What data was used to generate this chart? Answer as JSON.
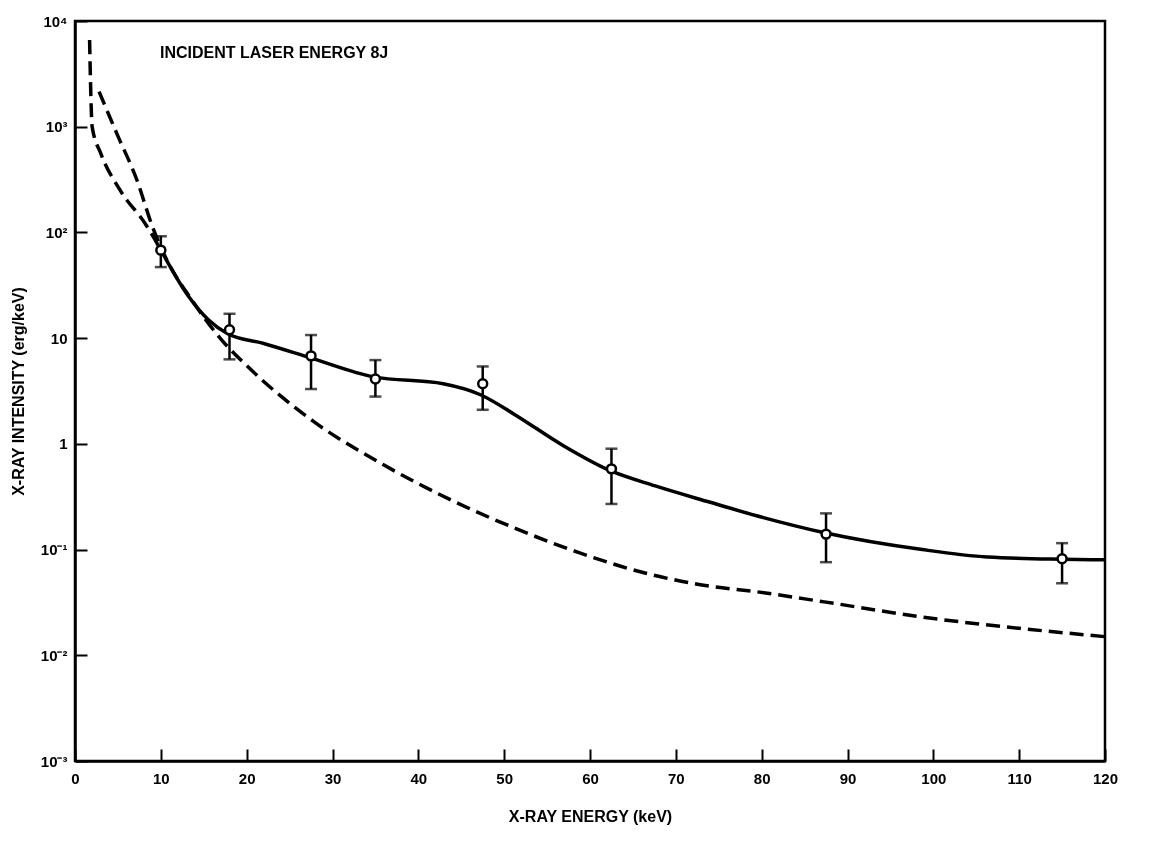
{
  "chart_data": {
    "type": "line",
    "xlabel": "X-RAY ENERGY (keV)",
    "ylabel": "X-RAY INTENSITY (erg/keV)",
    "annotations": [
      "INCIDENT LASER ENERGY 8J"
    ],
    "log": "y",
    "grid": false,
    "xlim": [
      0,
      120
    ],
    "xticks": [
      0,
      10,
      20,
      30,
      40,
      50,
      60,
      70,
      80,
      90,
      100,
      110,
      120
    ],
    "ylim": [
      0.001,
      10000
    ],
    "yticks": [
      {
        "value": 0.001,
        "label": "10⁻³"
      },
      {
        "value": 0.01,
        "label": "10⁻²"
      },
      {
        "value": 0.1,
        "label": "10⁻¹"
      },
      1,
      10,
      {
        "value": 100,
        "label": "10²"
      },
      {
        "value": 1000,
        "label": "10³"
      },
      {
        "value": 10000,
        "label": "10⁴"
      }
    ],
    "series": [
      {
        "line_style": "dashed",
        "color": "#000000",
        "x": [
          1.7,
          2.0,
          3.0,
          5.2,
          8.3,
          10.1
        ],
        "values": [
          6600,
          1000,
          560,
          255,
          117,
          66
        ]
      },
      {
        "line_style": "solid",
        "color": "#000000",
        "x": [
          10.1,
          13.2,
          15.5,
          17.8,
          22,
          27.7,
          34.8,
          42.9,
          47.3,
          51.2,
          56.9,
          62.3,
          67.6,
          74,
          79.3,
          87.2,
          98.7,
          106.3,
          115,
          120
        ],
        "values": [
          66,
          25,
          15,
          11,
          8.9,
          6.4,
          4.3,
          3.7,
          2.9,
          1.9,
          0.96,
          0.56,
          0.4,
          0.28,
          0.21,
          0.145,
          0.1,
          0.085,
          0.081,
          0.08
        ]
      },
      {
        "line_style": "dashed",
        "color": "#000000",
        "x": [
          2.8,
          4.9,
          7.2,
          9.0,
          10.6,
          13.6,
          17,
          20,
          27.7,
          36,
          43.6,
          51.2,
          58.8,
          66.4,
          74,
          79.3,
          87.3,
          98.7,
          110,
          120
        ],
        "values": [
          2150,
          850,
          315,
          115,
          57,
          23,
          9.8,
          5.5,
          1.65,
          0.63,
          0.3,
          0.16,
          0.093,
          0.06,
          0.045,
          0.04,
          0.032,
          0.023,
          0.018,
          0.015
        ]
      },
      {
        "type": "scatter",
        "marker": "circle",
        "color": "#000000",
        "x": [
          10,
          18,
          27.5,
          35,
          47.5,
          62.5,
          87.5,
          115
        ],
        "values": [
          68,
          12,
          6.8,
          4.1,
          3.7,
          0.58,
          0.14,
          0.082
        ],
        "errors": [
          [
            47,
            92
          ],
          [
            6.3,
            17
          ],
          [
            3.3,
            10.7
          ],
          [
            2.8,
            6.2
          ],
          [
            2.1,
            5.4
          ],
          [
            0.27,
            0.9
          ],
          [
            0.076,
            0.22
          ],
          [
            0.048,
            0.115
          ]
        ]
      }
    ]
  }
}
